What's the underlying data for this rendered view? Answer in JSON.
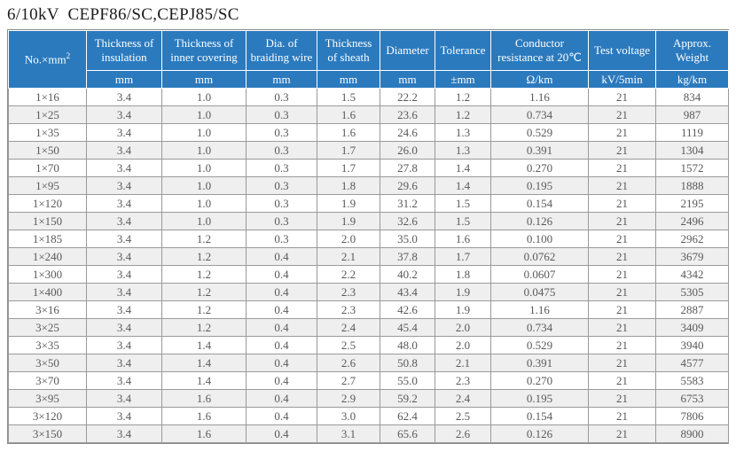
{
  "page": {
    "title": "6/10kV  CEPF86/SC,CEPJ85/SC"
  },
  "colors": {
    "header_bg": "#2b7abe",
    "header_text": "#ffffff",
    "row_alt_bg": "#efefef",
    "body_text": "#595959",
    "border": "#9a9a9a"
  },
  "table": {
    "spec_column": {
      "label": "No.×mm",
      "label_sup": "2",
      "unit": ""
    },
    "columns": [
      {
        "label": "Thickness of insulation",
        "unit": "mm"
      },
      {
        "label": "Thickness of inner covering",
        "unit": "mm"
      },
      {
        "label": "Dia. of braiding wire",
        "unit": "mm"
      },
      {
        "label": "Thickness of sheath",
        "unit": "mm"
      },
      {
        "label": "Diameter",
        "unit": "mm"
      },
      {
        "label": "Tolerance",
        "unit": "±mm"
      },
      {
        "label": "Conductor resistance at 20℃",
        "unit": "Ω/km"
      },
      {
        "label": "Test voltage",
        "unit": "kV/5min"
      },
      {
        "label": "Approx. Weight",
        "unit": "kg/km"
      }
    ],
    "rows": [
      [
        "1×16",
        "3.4",
        "1.0",
        "0.3",
        "1.5",
        "22.2",
        "1.2",
        "1.16",
        "21",
        "834"
      ],
      [
        "1×25",
        "3.4",
        "1.0",
        "0.3",
        "1.6",
        "23.6",
        "1.2",
        "0.734",
        "21",
        "987"
      ],
      [
        "1×35",
        "3.4",
        "1.0",
        "0.3",
        "1.6",
        "24.6",
        "1.3",
        "0.529",
        "21",
        "1119"
      ],
      [
        "1×50",
        "3.4",
        "1.0",
        "0.3",
        "1.7",
        "26.0",
        "1.3",
        "0.391",
        "21",
        "1304"
      ],
      [
        "1×70",
        "3.4",
        "1.0",
        "0.3",
        "1.7",
        "27.8",
        "1.4",
        "0.270",
        "21",
        "1572"
      ],
      [
        "1×95",
        "3.4",
        "1.0",
        "0.3",
        "1.8",
        "29.6",
        "1.4",
        "0.195",
        "21",
        "1888"
      ],
      [
        "1×120",
        "3.4",
        "1.0",
        "0.3",
        "1.9",
        "31.2",
        "1.5",
        "0.154",
        "21",
        "2195"
      ],
      [
        "1×150",
        "3.4",
        "1.0",
        "0.3",
        "1.9",
        "32.6",
        "1.5",
        "0.126",
        "21",
        "2496"
      ],
      [
        "1×185",
        "3.4",
        "1.2",
        "0.3",
        "2.0",
        "35.0",
        "1.6",
        "0.100",
        "21",
        "2962"
      ],
      [
        "1×240",
        "3.4",
        "1.2",
        "0.4",
        "2.1",
        "37.8",
        "1.7",
        "0.0762",
        "21",
        "3679"
      ],
      [
        "1×300",
        "3.4",
        "1.2",
        "0.4",
        "2.2",
        "40.2",
        "1.8",
        "0.0607",
        "21",
        "4342"
      ],
      [
        "1×400",
        "3.4",
        "1.2",
        "0.4",
        "2.3",
        "43.4",
        "1.9",
        "0.0475",
        "21",
        "5305"
      ],
      [
        "3×16",
        "3.4",
        "1.2",
        "0.4",
        "2.3",
        "42.6",
        "1.9",
        "1.16",
        "21",
        "2887"
      ],
      [
        "3×25",
        "3.4",
        "1.2",
        "0.4",
        "2.4",
        "45.4",
        "2.0",
        "0.734",
        "21",
        "3409"
      ],
      [
        "3×35",
        "3.4",
        "1.4",
        "0.4",
        "2.5",
        "48.0",
        "2.0",
        "0.529",
        "21",
        "3940"
      ],
      [
        "3×50",
        "3.4",
        "1.4",
        "0.4",
        "2.6",
        "50.8",
        "2.1",
        "0.391",
        "21",
        "4577"
      ],
      [
        "3×70",
        "3.4",
        "1.4",
        "0.4",
        "2.7",
        "55.0",
        "2.3",
        "0.270",
        "21",
        "5583"
      ],
      [
        "3×95",
        "3.4",
        "1.6",
        "0.4",
        "2.9",
        "59.2",
        "2.4",
        "0.195",
        "21",
        "6753"
      ],
      [
        "3×120",
        "3.4",
        "1.6",
        "0.4",
        "3.0",
        "62.4",
        "2.5",
        "0.154",
        "21",
        "7806"
      ],
      [
        "3×150",
        "3.4",
        "1.6",
        "0.4",
        "3.1",
        "65.6",
        "2.6",
        "0.126",
        "21",
        "8900"
      ]
    ]
  }
}
